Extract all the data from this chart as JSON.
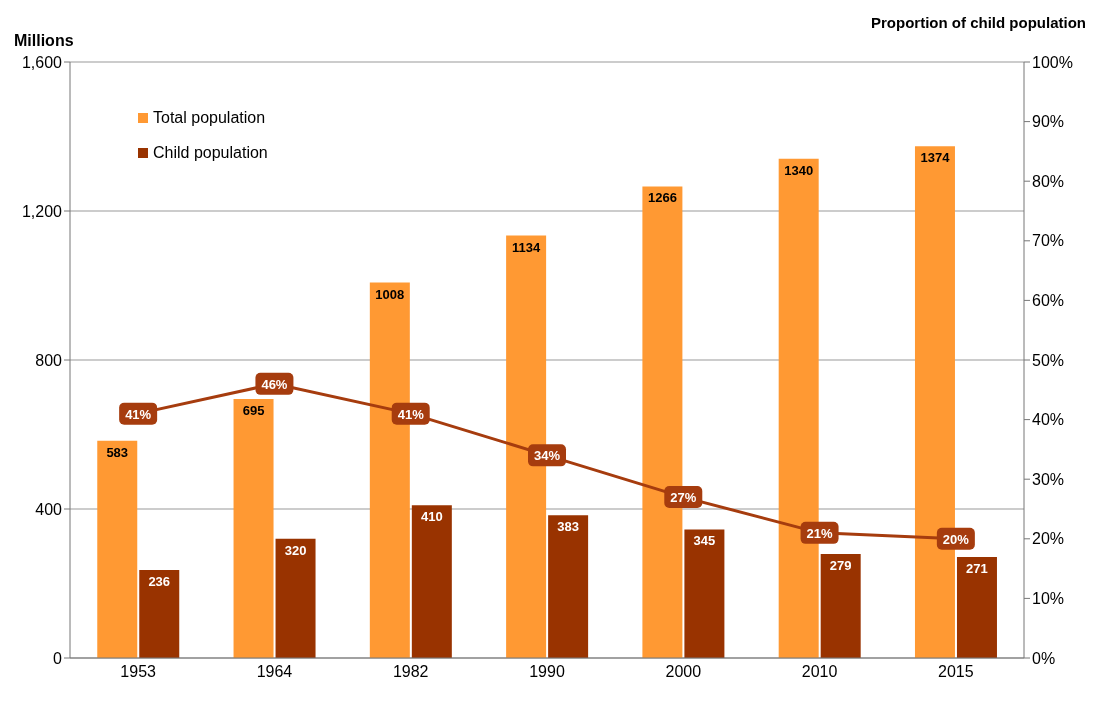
{
  "chart_data": {
    "type": "bar",
    "ylabel": "Millions",
    "y2label": "Proportion of child population",
    "categories": [
      "1953",
      "1964",
      "1982",
      "1990",
      "2000",
      "2010",
      "2015"
    ],
    "series": [
      {
        "name": "Total population",
        "color": "#ff9933",
        "values": [
          583,
          695,
          1008,
          1134,
          1266,
          1340,
          1374
        ]
      },
      {
        "name": "Child population",
        "color": "#993300",
        "values": [
          236,
          320,
          410,
          383,
          345,
          279,
          271
        ]
      },
      {
        "type": "line",
        "axis": "y2",
        "color": "#a63c0e",
        "marker": "square",
        "values": [
          41,
          46,
          41,
          34,
          27,
          21,
          20
        ],
        "value_labels": [
          "41%",
          "46%",
          "41%",
          "34%",
          "27%",
          "21%",
          "20%"
        ]
      }
    ],
    "ylim": [
      0,
      1600
    ],
    "yticks": [
      0,
      400,
      800,
      {
        "value": 1200,
        "label": "1,200"
      },
      {
        "value": 1600,
        "label": "1,600"
      }
    ],
    "y2lim": [
      0,
      100
    ],
    "y2ticks": [
      {
        "value": 0,
        "label": "0%"
      },
      {
        "value": 10,
        "label": "10%"
      },
      {
        "value": 20,
        "label": "20%"
      },
      {
        "value": 30,
        "label": "30%"
      },
      {
        "value": 40,
        "label": "40%"
      },
      {
        "value": 50,
        "label": "50%"
      },
      {
        "value": 60,
        "label": "60%"
      },
      {
        "value": 70,
        "label": "70%"
      },
      {
        "value": 80,
        "label": "80%"
      },
      {
        "value": 90,
        "label": "90%"
      },
      {
        "value": 100,
        "label": "100%"
      }
    ],
    "grid": "y",
    "legend": "top left",
    "data_labels": true
  }
}
